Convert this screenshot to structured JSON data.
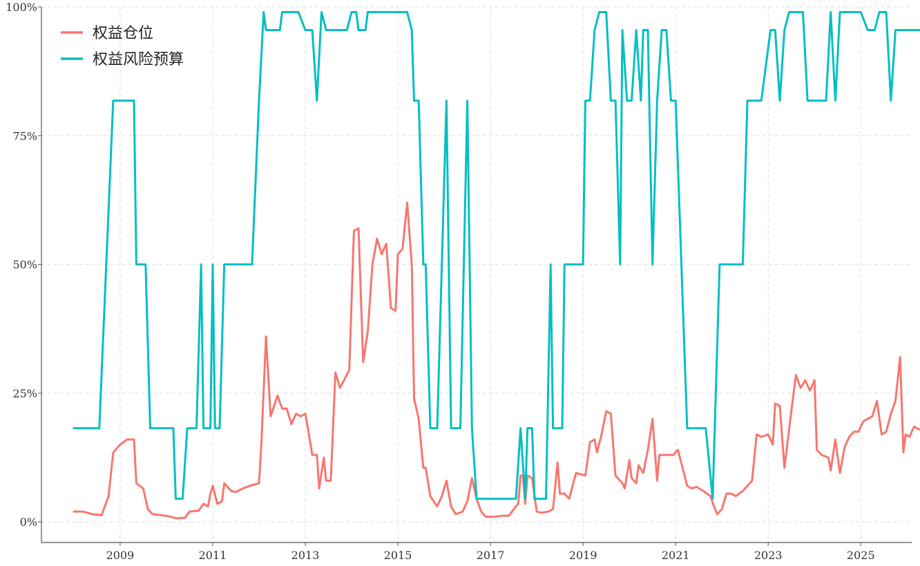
{
  "chart_data": {
    "type": "line",
    "title": "",
    "xlabel": "",
    "ylabel": "",
    "x_ticks": [
      "2009",
      "2011",
      "2013",
      "2015",
      "2017",
      "2019",
      "2021",
      "2023",
      "2025"
    ],
    "y_ticks": [
      "0%",
      "25%",
      "50%",
      "75%",
      "100%"
    ],
    "xlim": [
      2007.3,
      2026.1
    ],
    "ylim": [
      -0.04,
      1.0
    ],
    "grid": true,
    "legend": "top-left",
    "series": [
      {
        "name": "权益仓位",
        "color": "#F8766D",
        "points": [
          [
            2008.0,
            0.02
          ],
          [
            2008.2,
            0.02
          ],
          [
            2008.4,
            0.015
          ],
          [
            2008.6,
            0.013
          ],
          [
            2008.75,
            0.05
          ],
          [
            2008.85,
            0.135
          ],
          [
            2009.0,
            0.15
          ],
          [
            2009.15,
            0.16
          ],
          [
            2009.3,
            0.16
          ],
          [
            2009.35,
            0.075
          ],
          [
            2009.5,
            0.065
          ],
          [
            2009.6,
            0.025
          ],
          [
            2009.7,
            0.015
          ],
          [
            2009.9,
            0.013
          ],
          [
            2010.1,
            0.01
          ],
          [
            2010.2,
            0.007
          ],
          [
            2010.4,
            0.008
          ],
          [
            2010.5,
            0.02
          ],
          [
            2010.7,
            0.022
          ],
          [
            2010.8,
            0.035
          ],
          [
            2010.9,
            0.03
          ],
          [
            2010.95,
            0.055
          ],
          [
            2011.0,
            0.07
          ],
          [
            2011.1,
            0.035
          ],
          [
            2011.2,
            0.04
          ],
          [
            2011.25,
            0.075
          ],
          [
            2011.4,
            0.06
          ],
          [
            2011.5,
            0.058
          ],
          [
            2011.65,
            0.065
          ],
          [
            2011.8,
            0.07
          ],
          [
            2012.0,
            0.075
          ],
          [
            2012.05,
            0.15
          ],
          [
            2012.15,
            0.36
          ],
          [
            2012.25,
            0.205
          ],
          [
            2012.4,
            0.245
          ],
          [
            2012.5,
            0.22
          ],
          [
            2012.6,
            0.22
          ],
          [
            2012.7,
            0.19
          ],
          [
            2012.8,
            0.21
          ],
          [
            2012.9,
            0.205
          ],
          [
            2013.0,
            0.21
          ],
          [
            2013.05,
            0.185
          ],
          [
            2013.15,
            0.13
          ],
          [
            2013.25,
            0.13
          ],
          [
            2013.3,
            0.065
          ],
          [
            2013.4,
            0.125
          ],
          [
            2013.45,
            0.08
          ],
          [
            2013.55,
            0.08
          ],
          [
            2013.65,
            0.29
          ],
          [
            2013.75,
            0.26
          ],
          [
            2013.95,
            0.295
          ],
          [
            2014.05,
            0.565
          ],
          [
            2014.15,
            0.57
          ],
          [
            2014.25,
            0.31
          ],
          [
            2014.35,
            0.37
          ],
          [
            2014.45,
            0.5
          ],
          [
            2014.55,
            0.55
          ],
          [
            2014.65,
            0.52
          ],
          [
            2014.75,
            0.54
          ],
          [
            2014.85,
            0.415
          ],
          [
            2014.95,
            0.41
          ],
          [
            2015.0,
            0.52
          ],
          [
            2015.1,
            0.53
          ],
          [
            2015.2,
            0.62
          ],
          [
            2015.3,
            0.5
          ],
          [
            2015.35,
            0.24
          ],
          [
            2015.45,
            0.2
          ],
          [
            2015.55,
            0.105
          ],
          [
            2015.6,
            0.105
          ],
          [
            2015.7,
            0.05
          ],
          [
            2015.85,
            0.03
          ],
          [
            2015.95,
            0.05
          ],
          [
            2016.05,
            0.08
          ],
          [
            2016.15,
            0.03
          ],
          [
            2016.25,
            0.015
          ],
          [
            2016.4,
            0.02
          ],
          [
            2016.5,
            0.04
          ],
          [
            2016.6,
            0.085
          ],
          [
            2016.7,
            0.045
          ],
          [
            2016.8,
            0.02
          ],
          [
            2016.9,
            0.01
          ],
          [
            2017.1,
            0.01
          ],
          [
            2017.25,
            0.012
          ],
          [
            2017.4,
            0.012
          ],
          [
            2017.55,
            0.03
          ],
          [
            2017.6,
            0.035
          ],
          [
            2017.65,
            0.09
          ],
          [
            2017.7,
            0.09
          ],
          [
            2017.75,
            0.035
          ],
          [
            2017.8,
            0.09
          ],
          [
            2017.9,
            0.085
          ],
          [
            2018.0,
            0.02
          ],
          [
            2018.1,
            0.018
          ],
          [
            2018.25,
            0.02
          ],
          [
            2018.35,
            0.025
          ],
          [
            2018.45,
            0.115
          ],
          [
            2018.5,
            0.055
          ],
          [
            2018.6,
            0.055
          ],
          [
            2018.7,
            0.045
          ],
          [
            2018.85,
            0.095
          ],
          [
            2019.05,
            0.09
          ],
          [
            2019.15,
            0.155
          ],
          [
            2019.25,
            0.16
          ],
          [
            2019.3,
            0.135
          ],
          [
            2019.4,
            0.17
          ],
          [
            2019.5,
            0.215
          ],
          [
            2019.6,
            0.21
          ],
          [
            2019.7,
            0.09
          ],
          [
            2019.85,
            0.075
          ],
          [
            2019.9,
            0.065
          ],
          [
            2020.0,
            0.12
          ],
          [
            2020.05,
            0.085
          ],
          [
            2020.15,
            0.075
          ],
          [
            2020.2,
            0.11
          ],
          [
            2020.3,
            0.095
          ],
          [
            2020.4,
            0.14
          ],
          [
            2020.5,
            0.2
          ],
          [
            2020.6,
            0.08
          ],
          [
            2020.65,
            0.13
          ],
          [
            2020.75,
            0.13
          ],
          [
            2020.85,
            0.13
          ],
          [
            2020.95,
            0.13
          ],
          [
            2021.05,
            0.14
          ],
          [
            2021.15,
            0.105
          ],
          [
            2021.25,
            0.07
          ],
          [
            2021.35,
            0.065
          ],
          [
            2021.45,
            0.068
          ],
          [
            2021.6,
            0.06
          ],
          [
            2021.75,
            0.05
          ],
          [
            2021.85,
            0.025
          ],
          [
            2021.9,
            0.015
          ],
          [
            2022.0,
            0.025
          ],
          [
            2022.1,
            0.055
          ],
          [
            2022.2,
            0.055
          ],
          [
            2022.3,
            0.05
          ],
          [
            2022.45,
            0.06
          ],
          [
            2022.55,
            0.07
          ],
          [
            2022.65,
            0.08
          ],
          [
            2022.75,
            0.17
          ],
          [
            2022.85,
            0.165
          ],
          [
            2023.0,
            0.17
          ],
          [
            2023.1,
            0.15
          ],
          [
            2023.15,
            0.23
          ],
          [
            2023.25,
            0.225
          ],
          [
            2023.35,
            0.105
          ],
          [
            2023.5,
            0.215
          ],
          [
            2023.6,
            0.285
          ],
          [
            2023.7,
            0.26
          ],
          [
            2023.8,
            0.275
          ],
          [
            2023.9,
            0.255
          ],
          [
            2024.0,
            0.275
          ],
          [
            2024.05,
            0.14
          ],
          [
            2024.15,
            0.13
          ],
          [
            2024.3,
            0.125
          ],
          [
            2024.35,
            0.1
          ],
          [
            2024.45,
            0.16
          ],
          [
            2024.55,
            0.095
          ],
          [
            2024.65,
            0.145
          ],
          [
            2024.75,
            0.165
          ],
          [
            2024.85,
            0.175
          ],
          [
            2024.95,
            0.175
          ],
          [
            2025.05,
            0.195
          ],
          [
            2025.15,
            0.2
          ],
          [
            2025.25,
            0.205
          ],
          [
            2025.35,
            0.235
          ],
          [
            2025.45,
            0.17
          ],
          [
            2025.55,
            0.175
          ],
          [
            2025.65,
            0.21
          ],
          [
            2025.75,
            0.235
          ],
          [
            2025.85,
            0.32
          ],
          [
            2025.92,
            0.135
          ],
          [
            2025.97,
            0.17
          ],
          [
            2026.05,
            0.165
          ],
          [
            2026.15,
            0.185
          ],
          [
            2026.25,
            0.18
          ],
          [
            2026.35,
            0.18
          ],
          [
            2026.45,
            0.25
          ],
          [
            2026.55,
            0.21
          ],
          [
            2026.65,
            0.215
          ],
          [
            2026.72,
            0.19
          ],
          [
            2026.8,
            0.11
          ],
          [
            2026.85,
            0.075
          ]
        ]
      },
      {
        "name": "权益风险预算",
        "color": "#00BFC4",
        "points": [
          [
            2008.0,
            0.182
          ],
          [
            2008.55,
            0.182
          ],
          [
            2008.85,
            0.818
          ],
          [
            2009.3,
            0.818
          ],
          [
            2009.35,
            0.5
          ],
          [
            2009.55,
            0.5
          ],
          [
            2009.65,
            0.182
          ],
          [
            2010.15,
            0.182
          ],
          [
            2010.2,
            0.045
          ],
          [
            2010.35,
            0.045
          ],
          [
            2010.45,
            0.182
          ],
          [
            2010.65,
            0.182
          ],
          [
            2010.75,
            0.5
          ],
          [
            2010.8,
            0.182
          ],
          [
            2010.95,
            0.182
          ],
          [
            2011.0,
            0.5
          ],
          [
            2011.05,
            0.182
          ],
          [
            2011.15,
            0.182
          ],
          [
            2011.25,
            0.5
          ],
          [
            2011.85,
            0.5
          ],
          [
            2012.0,
            0.818
          ],
          [
            2012.1,
            0.99
          ],
          [
            2012.15,
            0.955
          ],
          [
            2012.45,
            0.955
          ],
          [
            2012.5,
            0.99
          ],
          [
            2012.85,
            0.99
          ],
          [
            2013.0,
            0.955
          ],
          [
            2013.15,
            0.955
          ],
          [
            2013.25,
            0.818
          ],
          [
            2013.35,
            0.99
          ],
          [
            2013.45,
            0.955
          ],
          [
            2013.9,
            0.955
          ],
          [
            2014.0,
            0.99
          ],
          [
            2014.1,
            0.99
          ],
          [
            2014.15,
            0.955
          ],
          [
            2014.3,
            0.955
          ],
          [
            2014.35,
            0.99
          ],
          [
            2015.2,
            0.99
          ],
          [
            2015.3,
            0.955
          ],
          [
            2015.35,
            0.818
          ],
          [
            2015.45,
            0.818
          ],
          [
            2015.55,
            0.5
          ],
          [
            2015.6,
            0.5
          ],
          [
            2015.7,
            0.182
          ],
          [
            2015.85,
            0.182
          ],
          [
            2016.05,
            0.818
          ],
          [
            2016.15,
            0.182
          ],
          [
            2016.35,
            0.182
          ],
          [
            2016.5,
            0.818
          ],
          [
            2016.6,
            0.182
          ],
          [
            2016.7,
            0.045
          ],
          [
            2017.55,
            0.045
          ],
          [
            2017.65,
            0.182
          ],
          [
            2017.75,
            0.045
          ],
          [
            2017.8,
            0.182
          ],
          [
            2017.9,
            0.182
          ],
          [
            2017.95,
            0.045
          ],
          [
            2018.2,
            0.045
          ],
          [
            2018.3,
            0.5
          ],
          [
            2018.35,
            0.182
          ],
          [
            2018.55,
            0.182
          ],
          [
            2018.6,
            0.5
          ],
          [
            2019.0,
            0.5
          ],
          [
            2019.05,
            0.818
          ],
          [
            2019.15,
            0.818
          ],
          [
            2019.25,
            0.955
          ],
          [
            2019.35,
            0.99
          ],
          [
            2019.5,
            0.99
          ],
          [
            2019.6,
            0.818
          ],
          [
            2019.7,
            0.818
          ],
          [
            2019.8,
            0.5
          ],
          [
            2019.85,
            0.955
          ],
          [
            2019.95,
            0.818
          ],
          [
            2020.05,
            0.818
          ],
          [
            2020.15,
            0.955
          ],
          [
            2020.25,
            0.818
          ],
          [
            2020.3,
            0.955
          ],
          [
            2020.4,
            0.955
          ],
          [
            2020.5,
            0.5
          ],
          [
            2020.6,
            0.818
          ],
          [
            2020.7,
            0.955
          ],
          [
            2020.8,
            0.955
          ],
          [
            2020.9,
            0.818
          ],
          [
            2021.0,
            0.818
          ],
          [
            2021.25,
            0.182
          ],
          [
            2021.65,
            0.182
          ],
          [
            2021.8,
            0.045
          ],
          [
            2021.95,
            0.5
          ],
          [
            2022.35,
            0.5
          ],
          [
            2022.45,
            0.5
          ],
          [
            2022.55,
            0.818
          ],
          [
            2022.85,
            0.818
          ],
          [
            2023.05,
            0.955
          ],
          [
            2023.15,
            0.955
          ],
          [
            2023.25,
            0.818
          ],
          [
            2023.35,
            0.955
          ],
          [
            2023.45,
            0.99
          ],
          [
            2023.75,
            0.99
          ],
          [
            2023.85,
            0.818
          ],
          [
            2024.25,
            0.818
          ],
          [
            2024.35,
            0.99
          ],
          [
            2024.45,
            0.818
          ],
          [
            2024.55,
            0.99
          ],
          [
            2025.0,
            0.99
          ],
          [
            2025.15,
            0.955
          ],
          [
            2025.3,
            0.955
          ],
          [
            2025.4,
            0.99
          ],
          [
            2025.55,
            0.99
          ],
          [
            2025.65,
            0.818
          ],
          [
            2025.75,
            0.955
          ],
          [
            2026.65,
            0.955
          ],
          [
            2026.85,
            0.182
          ]
        ]
      }
    ]
  }
}
